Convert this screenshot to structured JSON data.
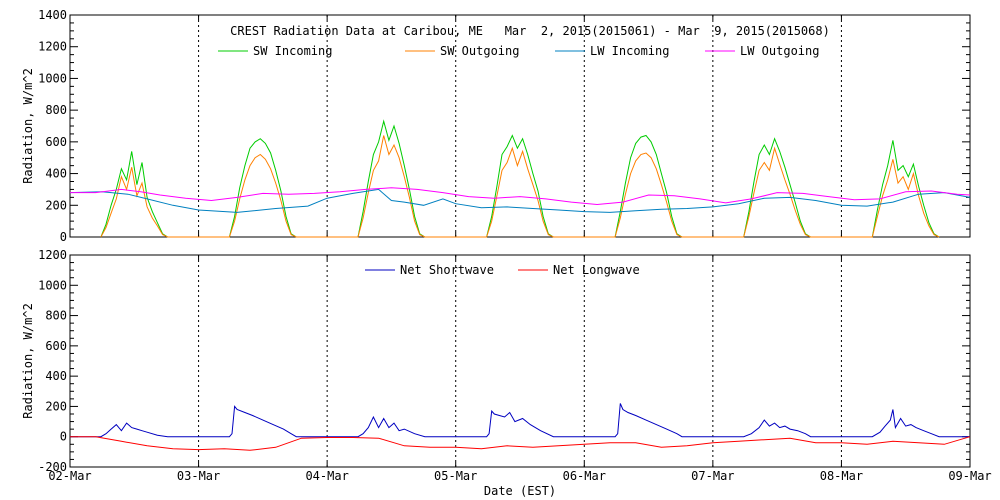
{
  "chart_data": [
    {
      "type": "line",
      "title": "CREST Radiation Data at Caribou, ME   Mar  2, 2015(2015061) - Mar  9, 2015(2015068)",
      "ylabel": "Radiation, W/m^2",
      "xlabel": "",
      "xlim": [
        0,
        7
      ],
      "ylim": [
        0,
        1400
      ],
      "yticks": [
        "0",
        "200",
        "400",
        "600",
        "800",
        "1000",
        "1200",
        "1400"
      ],
      "x_tick_labels": [
        "02-Mar",
        "03-Mar",
        "04-Mar",
        "05-Mar",
        "06-Mar",
        "07-Mar",
        "08-Mar",
        "09-Mar"
      ],
      "grid": true,
      "legend_position": "top",
      "series": [
        {
          "name": "SW Incoming",
          "color": "#00cc00",
          "x": [
            0.24,
            0.28,
            0.32,
            0.36,
            0.4,
            0.44,
            0.48,
            0.52,
            0.56,
            0.6,
            0.64,
            0.68,
            0.72,
            0.76,
            1.24,
            1.28,
            1.32,
            1.36,
            1.4,
            1.44,
            1.48,
            1.52,
            1.56,
            1.6,
            1.64,
            1.68,
            1.72,
            1.76,
            2.24,
            2.28,
            2.32,
            2.36,
            2.4,
            2.44,
            2.48,
            2.52,
            2.56,
            2.6,
            2.64,
            2.68,
            2.72,
            2.76,
            3.24,
            3.28,
            3.32,
            3.36,
            3.4,
            3.44,
            3.48,
            3.52,
            3.56,
            3.6,
            3.64,
            3.68,
            3.72,
            3.76,
            4.24,
            4.28,
            4.32,
            4.36,
            4.4,
            4.44,
            4.48,
            4.52,
            4.56,
            4.6,
            4.64,
            4.68,
            4.72,
            4.76,
            5.24,
            5.28,
            5.32,
            5.36,
            5.4,
            5.44,
            5.48,
            5.52,
            5.56,
            5.6,
            5.64,
            5.68,
            5.72,
            5.76,
            6.24,
            6.28,
            6.32,
            6.36,
            6.4,
            6.44,
            6.48,
            6.52,
            6.56,
            6.6,
            6.64,
            6.68,
            6.72,
            6.76
          ],
          "y": [
            0,
            80,
            200,
            300,
            430,
            360,
            540,
            330,
            470,
            250,
            160,
            90,
            20,
            0,
            0,
            130,
            310,
            450,
            560,
            600,
            620,
            590,
            530,
            420,
            290,
            130,
            20,
            0,
            0,
            160,
            350,
            520,
            600,
            730,
            610,
            700,
            590,
            450,
            300,
            130,
            20,
            0,
            0,
            130,
            320,
            520,
            570,
            640,
            560,
            620,
            520,
            400,
            290,
            130,
            20,
            0,
            0,
            160,
            340,
            500,
            590,
            630,
            640,
            600,
            520,
            400,
            280,
            130,
            20,
            0,
            0,
            160,
            350,
            520,
            580,
            520,
            620,
            540,
            440,
            330,
            220,
            100,
            20,
            0,
            0,
            170,
            330,
            450,
            610,
            420,
            450,
            380,
            460,
            320,
            200,
            90,
            20,
            0
          ]
        },
        {
          "name": "SW Outgoing",
          "color": "#ff8000",
          "x": [
            0.24,
            0.28,
            0.32,
            0.36,
            0.4,
            0.44,
            0.48,
            0.52,
            0.56,
            0.6,
            0.64,
            0.68,
            0.72,
            0.76,
            1.24,
            1.28,
            1.32,
            1.36,
            1.4,
            1.44,
            1.48,
            1.52,
            1.56,
            1.6,
            1.64,
            1.68,
            1.72,
            1.76,
            2.24,
            2.28,
            2.32,
            2.36,
            2.4,
            2.44,
            2.48,
            2.52,
            2.56,
            2.6,
            2.64,
            2.68,
            2.72,
            2.76,
            3.24,
            3.28,
            3.32,
            3.36,
            3.4,
            3.44,
            3.48,
            3.52,
            3.56,
            3.6,
            3.64,
            3.68,
            3.72,
            3.76,
            4.24,
            4.28,
            4.32,
            4.36,
            4.4,
            4.44,
            4.48,
            4.52,
            4.56,
            4.6,
            4.64,
            4.68,
            4.72,
            4.76,
            5.24,
            5.28,
            5.32,
            5.36,
            5.4,
            5.44,
            5.48,
            5.52,
            5.56,
            5.6,
            5.64,
            5.68,
            5.72,
            5.76,
            6.24,
            6.28,
            6.32,
            6.36,
            6.4,
            6.44,
            6.48,
            6.52,
            6.56,
            6.6,
            6.64,
            6.68,
            6.72,
            6.76
          ],
          "y": [
            0,
            60,
            150,
            240,
            380,
            300,
            440,
            260,
            340,
            190,
            120,
            70,
            15,
            0,
            0,
            100,
            240,
            360,
            450,
            500,
            520,
            490,
            430,
            340,
            230,
            100,
            15,
            0,
            0,
            120,
            280,
            420,
            480,
            640,
            520,
            580,
            500,
            380,
            250,
            100,
            15,
            0,
            0,
            100,
            260,
            420,
            470,
            560,
            450,
            540,
            430,
            330,
            230,
            100,
            15,
            0,
            0,
            120,
            270,
            400,
            480,
            520,
            530,
            500,
            430,
            330,
            220,
            100,
            15,
            0,
            0,
            130,
            280,
            420,
            470,
            420,
            560,
            460,
            360,
            270,
            170,
            80,
            15,
            0,
            0,
            130,
            260,
            360,
            490,
            340,
            380,
            300,
            400,
            260,
            150,
            70,
            15,
            0
          ]
        },
        {
          "name": "LW Incoming",
          "color": "#0080c0",
          "x": [
            0.0,
            0.25,
            0.45,
            0.6,
            0.8,
            1.0,
            1.3,
            1.6,
            1.85,
            2.0,
            2.2,
            2.4,
            2.5,
            2.6,
            2.75,
            2.9,
            3.0,
            3.2,
            3.4,
            3.6,
            3.8,
            4.0,
            4.2,
            4.4,
            4.6,
            4.8,
            5.0,
            5.2,
            5.4,
            5.6,
            5.8,
            6.0,
            6.2,
            6.4,
            6.6,
            6.8,
            7.0
          ],
          "y": [
            280,
            285,
            270,
            240,
            200,
            170,
            155,
            180,
            195,
            245,
            275,
            300,
            230,
            220,
            200,
            240,
            210,
            185,
            190,
            180,
            170,
            160,
            155,
            165,
            175,
            180,
            190,
            210,
            245,
            250,
            230,
            200,
            195,
            220,
            270,
            280,
            250
          ]
        },
        {
          "name": "LW Outgoing",
          "color": "#ff00ff",
          "x": [
            0.0,
            0.2,
            0.4,
            0.55,
            0.7,
            0.9,
            1.1,
            1.3,
            1.5,
            1.7,
            1.9,
            2.1,
            2.3,
            2.5,
            2.7,
            2.9,
            3.1,
            3.3,
            3.5,
            3.7,
            3.9,
            4.1,
            4.3,
            4.5,
            4.7,
            4.9,
            5.1,
            5.3,
            5.5,
            5.7,
            5.9,
            6.1,
            6.3,
            6.5,
            6.7,
            6.9,
            7.0
          ],
          "y": [
            280,
            280,
            300,
            285,
            265,
            245,
            230,
            250,
            275,
            270,
            275,
            285,
            300,
            310,
            300,
            280,
            255,
            245,
            255,
            240,
            220,
            205,
            220,
            265,
            260,
            240,
            215,
            240,
            280,
            275,
            255,
            235,
            240,
            285,
            290,
            270,
            265
          ]
        }
      ]
    },
    {
      "type": "line",
      "title": "",
      "ylabel": "Radiation, W/m^2",
      "xlabel": "Date (EST)",
      "xlim": [
        0,
        7
      ],
      "ylim": [
        -200,
        1200
      ],
      "yticks": [
        "-200",
        "0",
        "200",
        "400",
        "600",
        "800",
        "1000",
        "1200"
      ],
      "x_tick_labels": [
        "02-Mar",
        "03-Mar",
        "04-Mar",
        "05-Mar",
        "06-Mar",
        "07-Mar",
        "08-Mar",
        "09-Mar"
      ],
      "grid": true,
      "legend_position": "top",
      "series": [
        {
          "name": "Net Shortwave",
          "color": "#0000c0",
          "x": [
            0.0,
            0.24,
            0.28,
            0.32,
            0.36,
            0.4,
            0.44,
            0.48,
            0.52,
            0.56,
            0.6,
            0.68,
            0.76,
            1.24,
            1.26,
            1.28,
            1.3,
            1.36,
            1.42,
            1.5,
            1.58,
            1.66,
            1.72,
            1.76,
            2.24,
            2.28,
            2.32,
            2.36,
            2.4,
            2.44,
            2.48,
            2.52,
            2.56,
            2.6,
            2.68,
            2.76,
            3.24,
            3.26,
            3.28,
            3.3,
            3.34,
            3.38,
            3.42,
            3.46,
            3.52,
            3.58,
            3.66,
            3.76,
            4.24,
            4.26,
            4.28,
            4.3,
            4.34,
            4.4,
            4.48,
            4.56,
            4.64,
            4.72,
            4.76,
            5.24,
            5.3,
            5.36,
            5.4,
            5.44,
            5.48,
            5.52,
            5.56,
            5.6,
            5.66,
            5.72,
            5.76,
            6.24,
            6.3,
            6.34,
            6.38,
            6.4,
            6.42,
            6.46,
            6.5,
            6.54,
            6.58,
            6.64,
            6.7,
            6.76,
            7.0
          ],
          "y": [
            0,
            0,
            20,
            50,
            80,
            40,
            90,
            60,
            50,
            40,
            30,
            10,
            0,
            0,
            20,
            200,
            180,
            160,
            140,
            110,
            80,
            50,
            20,
            0,
            0,
            20,
            60,
            130,
            60,
            120,
            60,
            90,
            40,
            50,
            20,
            0,
            0,
            20,
            170,
            150,
            140,
            130,
            160,
            100,
            120,
            80,
            40,
            0,
            0,
            20,
            220,
            180,
            160,
            140,
            110,
            80,
            50,
            20,
            0,
            0,
            20,
            60,
            110,
            70,
            90,
            60,
            70,
            50,
            40,
            20,
            0,
            0,
            30,
            70,
            110,
            180,
            60,
            120,
            70,
            80,
            60,
            40,
            20,
            0,
            0
          ]
        },
        {
          "name": "Net Longwave",
          "color": "#ff0000",
          "x": [
            0.0,
            0.2,
            0.4,
            0.6,
            0.8,
            1.0,
            1.2,
            1.4,
            1.6,
            1.8,
            2.0,
            2.2,
            2.4,
            2.6,
            2.8,
            3.0,
            3.2,
            3.4,
            3.6,
            3.8,
            4.0,
            4.2,
            4.4,
            4.6,
            4.8,
            5.0,
            5.2,
            5.4,
            5.6,
            5.8,
            6.0,
            6.2,
            6.4,
            6.6,
            6.8,
            7.0
          ],
          "y": [
            0,
            0,
            -30,
            -60,
            -80,
            -85,
            -80,
            -90,
            -70,
            -10,
            -5,
            -5,
            -10,
            -60,
            -70,
            -70,
            -80,
            -60,
            -70,
            -60,
            -50,
            -40,
            -40,
            -70,
            -60,
            -40,
            -30,
            -20,
            -10,
            -40,
            -40,
            -50,
            -30,
            -40,
            -50,
            0
          ]
        }
      ]
    }
  ]
}
